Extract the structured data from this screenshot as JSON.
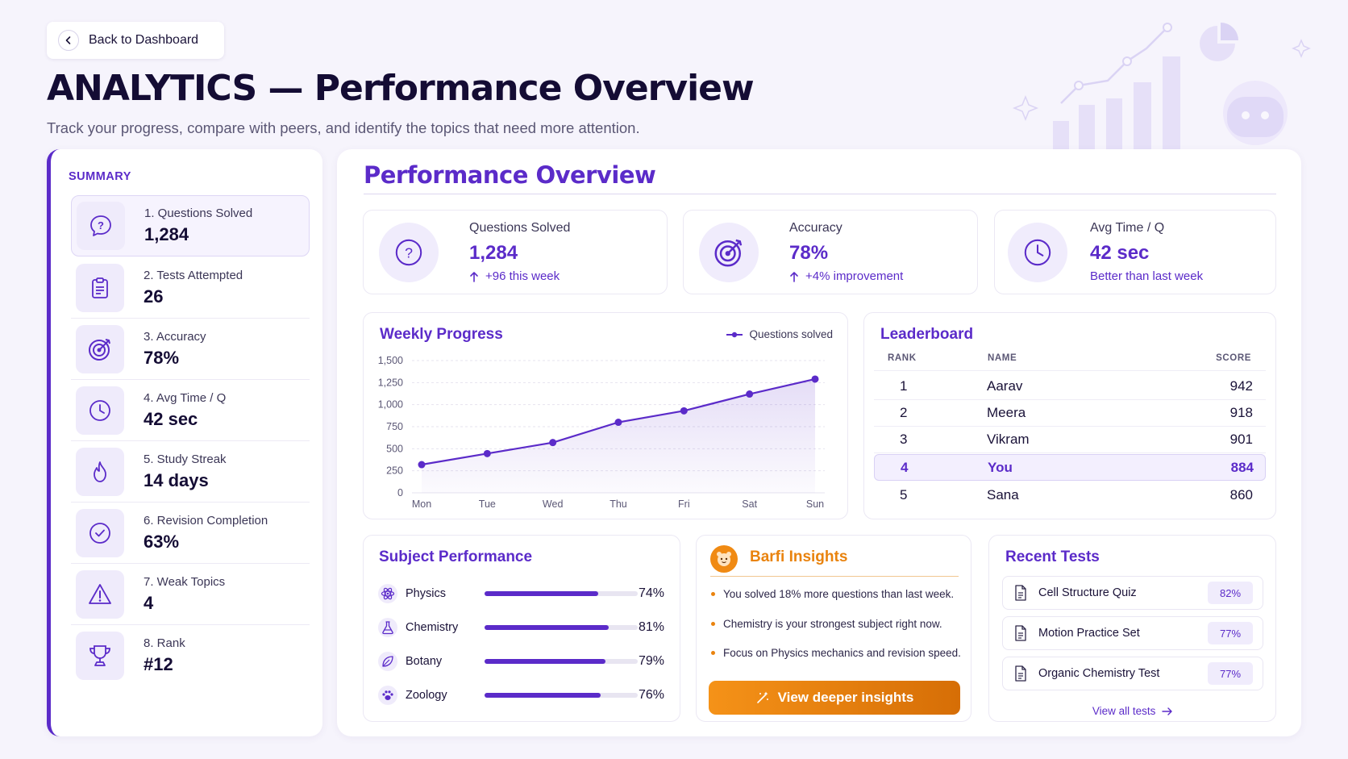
{
  "header": {
    "back_label": "Back to Dashboard",
    "title": "ANALYTICS — Performance Overview",
    "subtitle": "Track your progress, compare with peers, and identify the topics that need more attention."
  },
  "summary": {
    "title": "SUMMARY",
    "items": [
      {
        "label": "1. Questions Solved",
        "value": "1,284",
        "icon": "question-icon"
      },
      {
        "label": "2. Tests Attempted",
        "value": "26",
        "icon": "clipboard-icon"
      },
      {
        "label": "3. Accuracy",
        "value": "78%",
        "icon": "target-icon"
      },
      {
        "label": "4. Avg Time / Q",
        "value": "42 sec",
        "icon": "clock-icon"
      },
      {
        "label": "5. Study Streak",
        "value": "14 days",
        "icon": "flame-icon"
      },
      {
        "label": "6. Revision Completion",
        "value": "63%",
        "icon": "check-circle-icon"
      },
      {
        "label": "7. Weak Topics",
        "value": "4",
        "icon": "warning-icon"
      },
      {
        "label": "8. Rank",
        "value": "#12",
        "icon": "trophy-icon"
      }
    ]
  },
  "overview": {
    "title": "Performance Overview",
    "stats": [
      {
        "label": "Questions Solved",
        "value": "1,284",
        "note": "+96 this week",
        "icon": "question-icon"
      },
      {
        "label": "Accuracy",
        "value": "78%",
        "note": "+4% improvement",
        "icon": "target-icon"
      },
      {
        "label": "Avg Time / Q",
        "value": "42 sec",
        "note": "Better than last week",
        "icon": "clock-icon"
      }
    ]
  },
  "weekly": {
    "title": "Weekly Progress",
    "legend": "Questions solved"
  },
  "chart_data": {
    "type": "line",
    "title": "Weekly Progress",
    "categories": [
      "Mon",
      "Tue",
      "Wed",
      "Thu",
      "Fri",
      "Sat",
      "Sun"
    ],
    "series": [
      {
        "name": "Questions solved",
        "values": [
          320,
          445,
          570,
          800,
          930,
          1120,
          1290
        ]
      }
    ],
    "ylim": [
      0,
      1500
    ],
    "yticks": [
      "0",
      "250",
      "500",
      "750",
      "1,000",
      "1,250",
      "1,500"
    ],
    "grid": true,
    "legend": "top-right",
    "color": "#5b2bc9"
  },
  "leaderboard": {
    "title": "Leaderboard",
    "headers": {
      "rank": "RANK",
      "name": "NAME",
      "score": "SCORE"
    },
    "rows": [
      {
        "rank": "1",
        "name": "Aarav",
        "score": "942"
      },
      {
        "rank": "2",
        "name": "Meera",
        "score": "918"
      },
      {
        "rank": "3",
        "name": "Vikram",
        "score": "901"
      },
      {
        "rank": "4",
        "name": "You",
        "score": "884"
      },
      {
        "rank": "5",
        "name": "Sana",
        "score": "860"
      }
    ]
  },
  "subjects": {
    "title": "Subject Performance",
    "items": [
      {
        "name": "Physics",
        "pct": "74%",
        "level": 0.74,
        "icon": "atom-icon"
      },
      {
        "name": "Chemistry",
        "pct": "81%",
        "level": 0.81,
        "icon": "flask-icon"
      },
      {
        "name": "Botany",
        "pct": "79%",
        "level": 0.79,
        "icon": "leaf-icon"
      },
      {
        "name": "Zoology",
        "pct": "76%",
        "level": 0.76,
        "icon": "paw-icon"
      }
    ]
  },
  "insights": {
    "title": "Barfi Insights",
    "items": [
      "You solved 18% more questions than last week.",
      "Chemistry is your strongest subject right now.",
      "Focus on Physics mechanics and revision speed."
    ],
    "button": "View deeper insights"
  },
  "recent_tests": {
    "title": "Recent Tests",
    "items": [
      {
        "name": "Cell Structure Quiz",
        "score": "82%"
      },
      {
        "name": "Motion Practice Set",
        "score": "77%"
      },
      {
        "name": "Organic Chemistry Test",
        "score": "77%"
      }
    ],
    "link": "View all tests"
  },
  "colors": {
    "accent": "#5b2bc9",
    "orange": "#e9830e",
    "background": "#f6f4fc"
  }
}
